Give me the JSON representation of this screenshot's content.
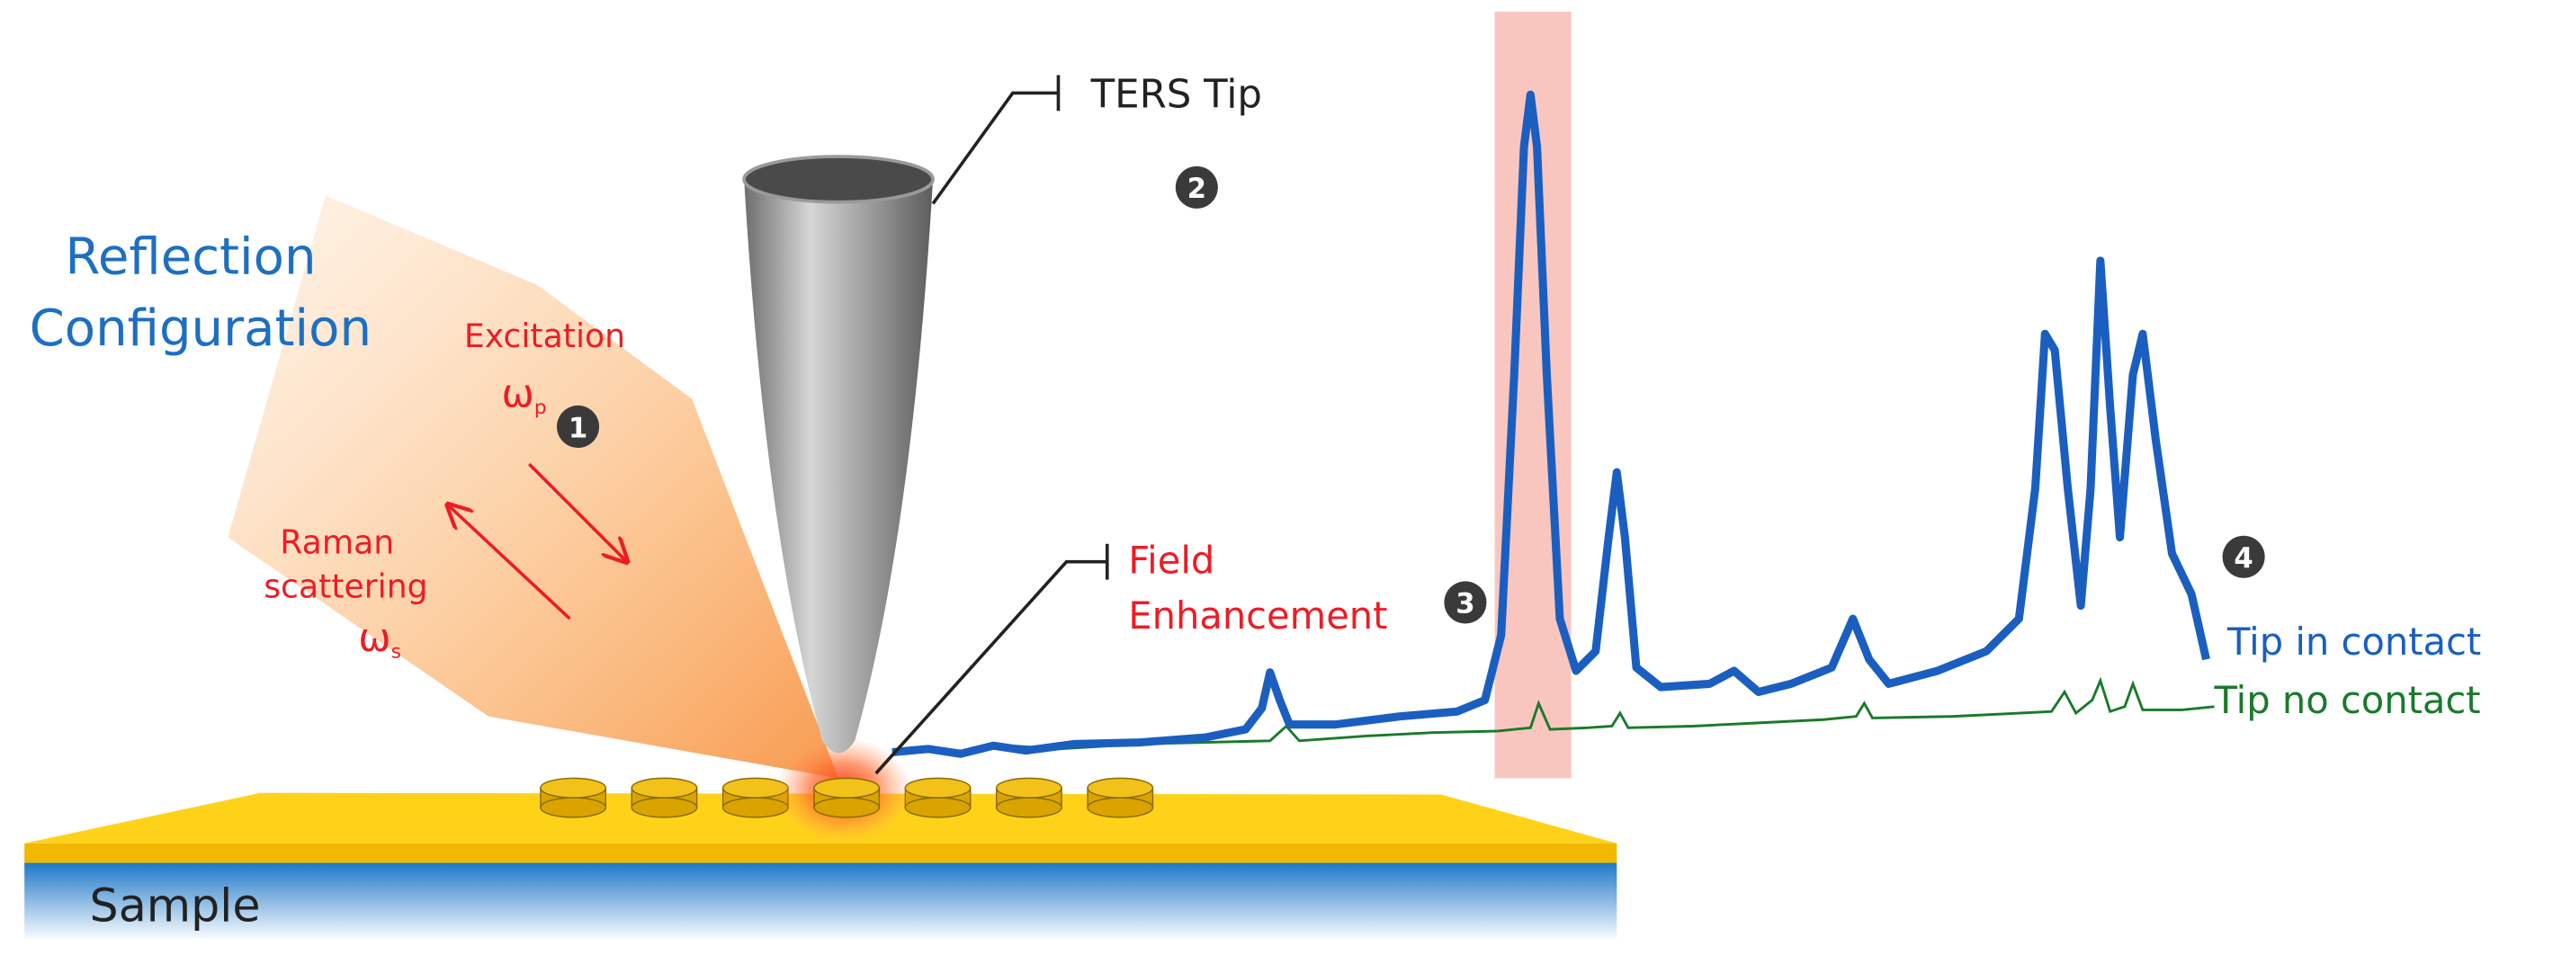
{
  "title": {
    "line1": "Reflection",
    "line2": "Configuration"
  },
  "beam": {
    "excitation": "Excitation",
    "excitation_symbol": "ω",
    "excitation_sub": "p",
    "raman_line1": "Raman",
    "raman_line2": "scattering",
    "raman_symbol": "ω",
    "raman_sub": "s"
  },
  "steps": [
    "1",
    "2",
    "3",
    "4"
  ],
  "tip_label": "TERS Tip",
  "field_label": {
    "line1": "Field",
    "line2": "Enhancement"
  },
  "legend": {
    "contact": "Tip in contact",
    "no_contact": "Tip no contact"
  },
  "sample": "Sample"
}
